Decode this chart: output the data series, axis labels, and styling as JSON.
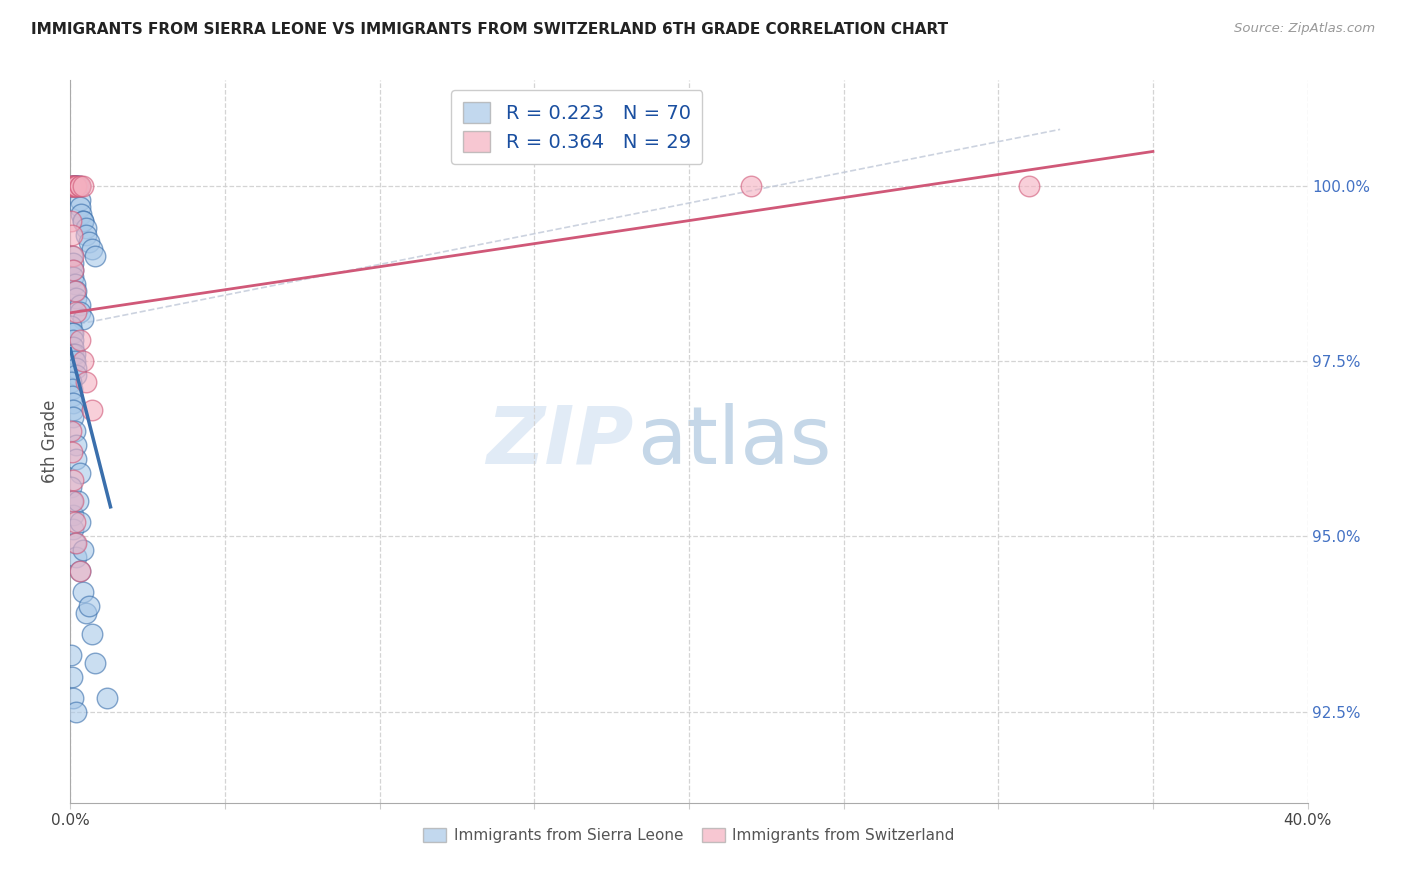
{
  "title": "IMMIGRANTS FROM SIERRA LEONE VS IMMIGRANTS FROM SWITZERLAND 6TH GRADE CORRELATION CHART",
  "source": "Source: ZipAtlas.com",
  "ylabel": "6th Grade",
  "yticks": [
    92.5,
    95.0,
    97.5,
    100.0
  ],
  "ytick_labels": [
    "92.5%",
    "95.0%",
    "97.5%",
    "100.0%"
  ],
  "xlim": [
    0.0,
    0.4
  ],
  "ylim": [
    91.2,
    101.5
  ],
  "legend_R1": "R = 0.223",
  "legend_N1": "N = 70",
  "legend_R2": "R = 0.364",
  "legend_N2": "N = 29",
  "color_blue": "#a8c8e8",
  "color_pink": "#f4b0c0",
  "color_blue_line": "#3a6fac",
  "color_pink_line": "#d05878",
  "color_dashed": "#c0c8d8",
  "watermark_zip": "ZIP",
  "watermark_atlas": "atlas",
  "sl_x": [
    0.0005,
    0.0008,
    0.001,
    0.0012,
    0.0015,
    0.002,
    0.002,
    0.002,
    0.0025,
    0.003,
    0.003,
    0.003,
    0.0035,
    0.004,
    0.004,
    0.005,
    0.005,
    0.006,
    0.007,
    0.008,
    0.0005,
    0.001,
    0.001,
    0.001,
    0.0015,
    0.002,
    0.002,
    0.003,
    0.003,
    0.004,
    0.0003,
    0.0005,
    0.001,
    0.001,
    0.001,
    0.001,
    0.0015,
    0.0015,
    0.002,
    0.002,
    0.0003,
    0.0005,
    0.0005,
    0.001,
    0.001,
    0.001,
    0.0015,
    0.002,
    0.002,
    0.003,
    0.0003,
    0.0005,
    0.001,
    0.001,
    0.0015,
    0.002,
    0.003,
    0.004,
    0.005,
    0.007,
    0.0003,
    0.0005,
    0.001,
    0.002,
    0.0025,
    0.003,
    0.004,
    0.006,
    0.008,
    0.012
  ],
  "sl_y": [
    100.0,
    100.0,
    100.0,
    100.0,
    100.0,
    100.0,
    100.0,
    100.0,
    100.0,
    100.0,
    99.8,
    99.7,
    99.6,
    99.5,
    99.5,
    99.4,
    99.3,
    99.2,
    99.1,
    99.0,
    99.0,
    98.9,
    98.8,
    98.7,
    98.6,
    98.5,
    98.4,
    98.3,
    98.2,
    98.1,
    98.0,
    97.9,
    97.9,
    97.8,
    97.7,
    97.6,
    97.6,
    97.5,
    97.4,
    97.3,
    97.2,
    97.1,
    97.0,
    96.9,
    96.8,
    96.7,
    96.5,
    96.3,
    96.1,
    95.9,
    95.7,
    95.5,
    95.3,
    95.1,
    94.9,
    94.7,
    94.5,
    94.2,
    93.9,
    93.6,
    93.3,
    93.0,
    92.7,
    92.5,
    95.5,
    95.2,
    94.8,
    94.0,
    93.2,
    92.7
  ],
  "sw_x": [
    0.0003,
    0.0005,
    0.001,
    0.001,
    0.0015,
    0.002,
    0.002,
    0.003,
    0.003,
    0.004,
    0.0003,
    0.0005,
    0.001,
    0.001,
    0.0015,
    0.002,
    0.003,
    0.004,
    0.005,
    0.007,
    0.0003,
    0.0005,
    0.001,
    0.001,
    0.0015,
    0.002,
    0.003,
    0.22,
    0.31
  ],
  "sw_y": [
    100.0,
    100.0,
    100.0,
    100.0,
    100.0,
    100.0,
    100.0,
    100.0,
    100.0,
    100.0,
    99.5,
    99.3,
    99.0,
    98.8,
    98.5,
    98.2,
    97.8,
    97.5,
    97.2,
    96.8,
    96.5,
    96.2,
    95.8,
    95.5,
    95.2,
    94.9,
    94.5,
    100.0,
    100.0
  ]
}
